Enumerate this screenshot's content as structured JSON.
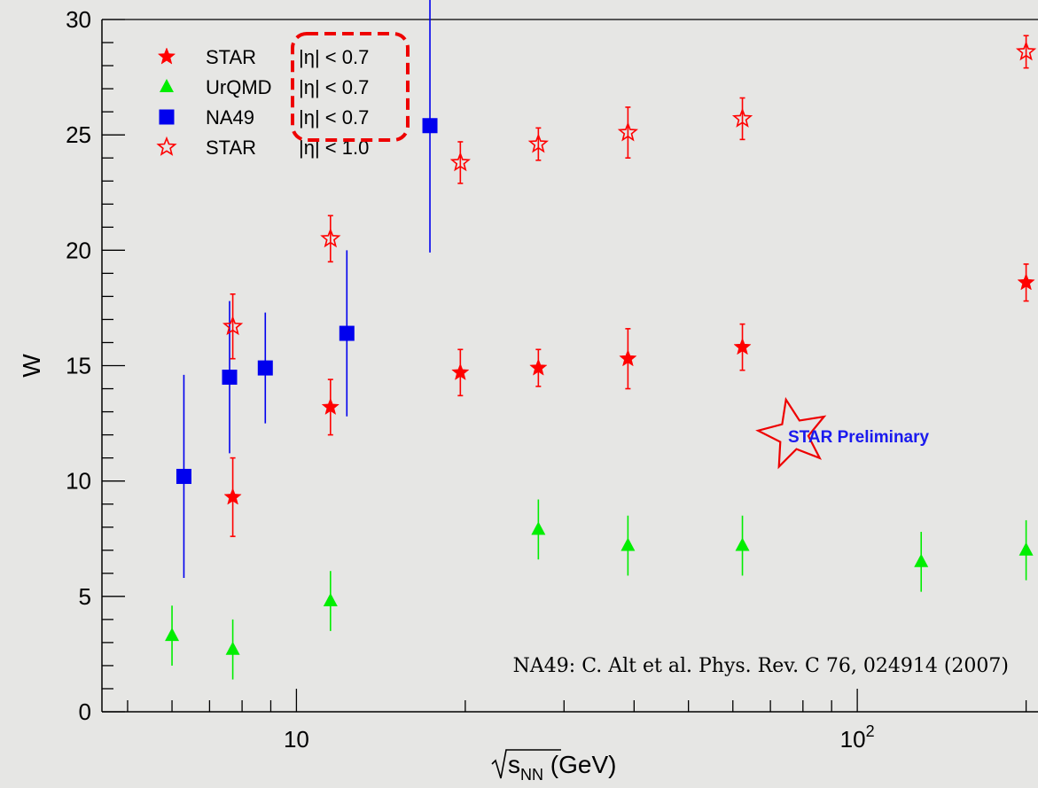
{
  "chart_data": {
    "type": "scatter",
    "x_scale": "log",
    "xlim": [
      4.5,
      210
    ],
    "ylim": [
      0,
      30
    ],
    "ylabel": "W",
    "xlabel": {
      "radicand": "s",
      "sub": "NN",
      "unit": "(GeV)"
    },
    "x_major_ticks": [
      {
        "value": 10,
        "base": "10",
        "exp": ""
      },
      {
        "value": 100,
        "base": "10",
        "exp": "2"
      }
    ],
    "x_minor_ticks": [
      5,
      6,
      7,
      8,
      9,
      20,
      30,
      40,
      50,
      60,
      70,
      80,
      90,
      200
    ],
    "y_ticks": [
      0,
      5,
      10,
      15,
      20,
      25,
      30
    ],
    "legend": [
      {
        "label": "STAR",
        "range": "|η| < 0.7",
        "marker": "star",
        "color": "#ff0000",
        "filled": true,
        "highlighted": true
      },
      {
        "label": "UrQMD",
        "range": "|η| < 0.7",
        "marker": "triangle",
        "color": "#00ee00",
        "filled": true,
        "highlighted": true
      },
      {
        "label": "NA49",
        "range": "|η| < 0.7",
        "marker": "square",
        "color": "#0000ee",
        "filled": true,
        "highlighted": true
      },
      {
        "label": "STAR",
        "range": "|η| < 1.0",
        "marker": "star",
        "color": "#ff0000",
        "filled": false,
        "highlighted": false
      }
    ],
    "series": [
      {
        "name": "STAR |η| < 0.7",
        "marker": "star",
        "color": "#ff0000",
        "filled": true,
        "points": [
          [
            7.7,
            9.3,
            1.7
          ],
          [
            11.5,
            13.2,
            1.2
          ],
          [
            19.6,
            14.7,
            1.0
          ],
          [
            27,
            14.9,
            0.8
          ],
          [
            39,
            15.3,
            1.3
          ],
          [
            62.4,
            15.8,
            1.0
          ],
          [
            200,
            18.6,
            0.8
          ]
        ]
      },
      {
        "name": "UrQMD |η| < 0.7",
        "marker": "triangle",
        "color": "#00ee00",
        "filled": true,
        "points": [
          [
            6.0,
            3.3,
            1.3
          ],
          [
            7.7,
            2.7,
            1.3
          ],
          [
            11.5,
            4.8,
            1.3
          ],
          [
            27,
            7.9,
            1.3
          ],
          [
            39,
            7.2,
            1.3
          ],
          [
            62.4,
            7.2,
            1.3
          ],
          [
            130,
            6.5,
            1.3
          ],
          [
            200,
            7.0,
            1.3
          ]
        ]
      },
      {
        "name": "NA49 |η| < 0.7",
        "marker": "square",
        "color": "#0000ee",
        "filled": true,
        "points": [
          [
            6.3,
            10.2,
            4.4
          ],
          [
            7.6,
            14.5,
            3.3
          ],
          [
            8.8,
            14.9,
            2.4
          ],
          [
            12.3,
            16.4,
            3.6
          ],
          [
            17.3,
            25.4,
            5.5
          ]
        ]
      },
      {
        "name": "STAR |η| < 1.0",
        "marker": "star",
        "color": "#ff0000",
        "filled": false,
        "points": [
          [
            7.7,
            16.7,
            1.4
          ],
          [
            11.5,
            20.5,
            1.0
          ],
          [
            19.6,
            23.8,
            0.9
          ],
          [
            27,
            24.6,
            0.7
          ],
          [
            39,
            25.1,
            1.1
          ],
          [
            62.4,
            25.7,
            0.9
          ],
          [
            200,
            28.6,
            0.7
          ]
        ]
      }
    ],
    "annotations": {
      "preliminary": "STAR Preliminary",
      "citation": "NA49:   C. Alt et al. Phys. Rev. C 76, 024914 (2007)"
    }
  }
}
